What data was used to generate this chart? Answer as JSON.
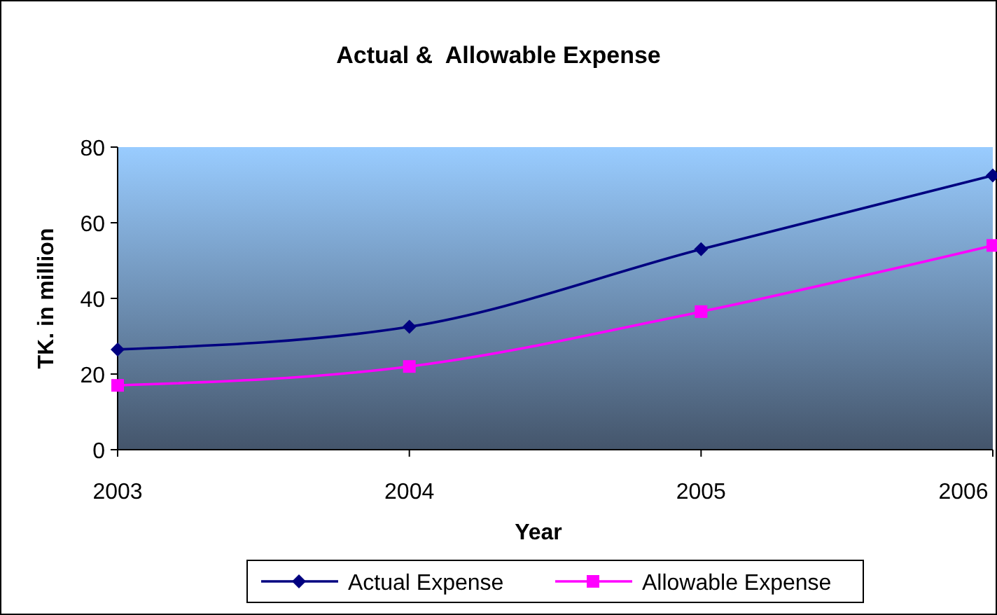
{
  "chart_data": {
    "type": "line",
    "title": "Actual &  Allowable Expense",
    "xlabel": "Year",
    "ylabel": "TK. in million",
    "x": [
      2003,
      2004,
      2005,
      2006
    ],
    "xlim": [
      2003,
      2006
    ],
    "xticks": [
      2003,
      2004,
      2005,
      2006
    ],
    "ylim": [
      0,
      80
    ],
    "yticks": [
      0,
      20,
      40,
      60,
      80
    ],
    "grid": false,
    "legend": "bottom",
    "line_style": "solid",
    "series": [
      {
        "name": "Actual Expense",
        "color": "#000080",
        "marker": "diamond",
        "values": [
          26.5,
          32.5,
          53,
          72.5
        ]
      },
      {
        "name": "Allowable Expense",
        "color": "#ff00ff",
        "marker": "square",
        "values": [
          17,
          22,
          36.5,
          54
        ]
      }
    ]
  }
}
